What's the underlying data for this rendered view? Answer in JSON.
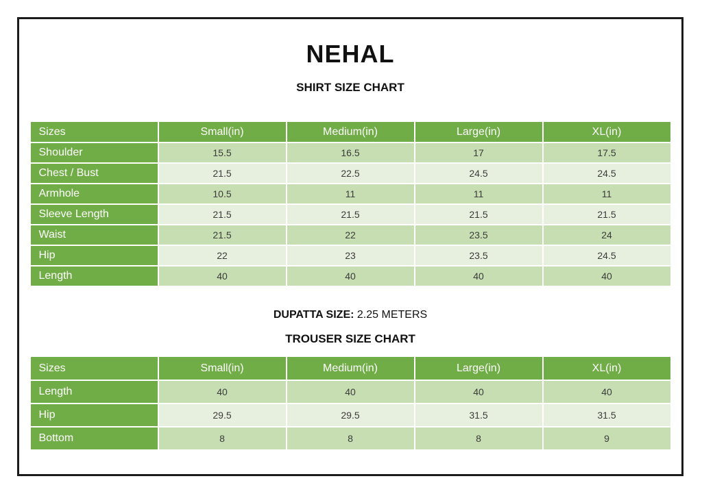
{
  "page": {
    "brand": "NEHAL",
    "shirt_chart_title": "SHIRT SIZE CHART",
    "dupatta_label": "DUPATTA SIZE:",
    "dupatta_value": "2.25 METERS",
    "trouser_chart_title": "TROUSER SIZE CHART"
  },
  "colors": {
    "header_green": "#70ad47",
    "band_dark": "#c6deb2",
    "band_light": "#e7f0de",
    "frame_border": "#1b1b1b",
    "value_text": "#3b3b3b",
    "header_text": "#ffffff"
  },
  "shirt_table": {
    "columns": [
      "Sizes",
      "Small(in)",
      "Medium(in)",
      "Large(in)",
      "XL(in)"
    ],
    "rows": [
      {
        "label": "Shoulder",
        "values": [
          "15.5",
          "16.5",
          "17",
          "17.5"
        ]
      },
      {
        "label": "Chest / Bust",
        "values": [
          "21.5",
          "22.5",
          "24.5",
          "24.5"
        ]
      },
      {
        "label": "Armhole",
        "values": [
          "10.5",
          "11",
          "11",
          "11"
        ]
      },
      {
        "label": "Sleeve Length",
        "values": [
          "21.5",
          "21.5",
          "21.5",
          "21.5"
        ]
      },
      {
        "label": "Waist",
        "values": [
          "21.5",
          "22",
          "23.5",
          "24"
        ]
      },
      {
        "label": "Hip",
        "values": [
          "22",
          "23",
          "23.5",
          "24.5"
        ]
      },
      {
        "label": "Length",
        "values": [
          "40",
          "40",
          "40",
          "40"
        ]
      }
    ]
  },
  "trouser_table": {
    "columns": [
      "Sizes",
      "Small(in)",
      "Medium(in)",
      "Large(in)",
      "XL(in)"
    ],
    "rows": [
      {
        "label": "Length",
        "values": [
          "40",
          "40",
          "40",
          "40"
        ]
      },
      {
        "label": "Hip",
        "values": [
          "29.5",
          "29.5",
          "31.5",
          "31.5"
        ]
      },
      {
        "label": "Bottom",
        "values": [
          "8",
          "8",
          "8",
          "9"
        ]
      }
    ]
  }
}
